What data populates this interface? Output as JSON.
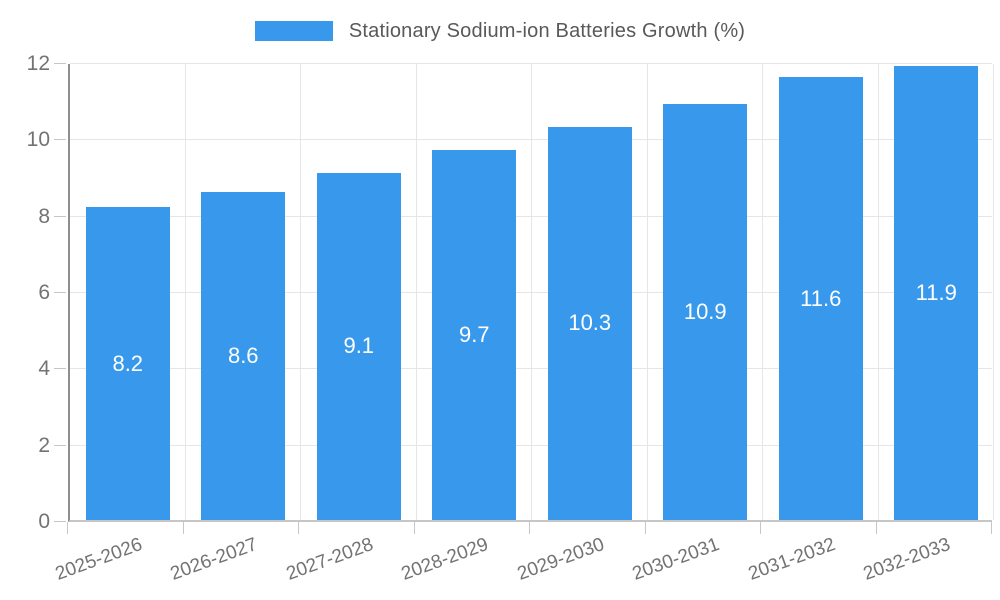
{
  "legend": {
    "label": "Stationary Sodium-ion Batteries Growth (%)"
  },
  "colors": {
    "bar": "#3899ec",
    "grid": "#e6e6e6",
    "axis_left": "#8e8e8e",
    "axis_bottom": "#c6c6c6",
    "tick": "#c6c6c6",
    "axis_label_text": "#737373",
    "legend_text": "#58595b",
    "value_label_text": "#ffffff"
  },
  "chart_data": {
    "type": "bar",
    "title": "",
    "legend": "Stationary Sodium-ion Batteries Growth (%)",
    "legend_position": "top-center",
    "categories": [
      "2025-2026",
      "2026-2027",
      "2027-2028",
      "2028-2029",
      "2029-2030",
      "2030-2031",
      "2031-2032",
      "2032-2033"
    ],
    "values": [
      8.2,
      8.6,
      9.1,
      9.7,
      10.3,
      10.9,
      11.6,
      11.9
    ],
    "value_labels_shown": true,
    "value_label_position": "inside-middle",
    "xlabel": "",
    "ylabel": "",
    "ylim": [
      0,
      12
    ],
    "yticks": [
      0,
      2,
      4,
      6,
      8,
      10,
      12
    ],
    "grid": true,
    "x_label_rotation_deg": -20
  }
}
